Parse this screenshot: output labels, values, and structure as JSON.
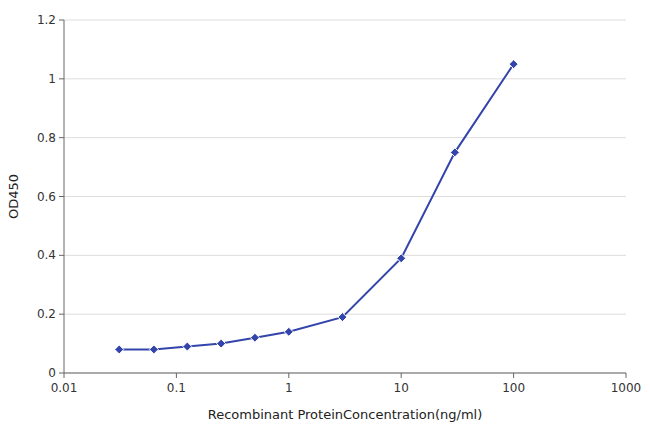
{
  "chart_data": {
    "type": "line",
    "x": [
      0.031,
      0.063,
      0.125,
      0.25,
      0.5,
      1.0,
      3.0,
      10.0,
      30.0,
      100.0
    ],
    "values": [
      0.08,
      0.08,
      0.09,
      0.1,
      0.12,
      0.14,
      0.19,
      0.39,
      0.75,
      1.05
    ],
    "color": "#3344aa",
    "marker": "diamond",
    "log": "x",
    "grid": "y",
    "xlabel": "Recombinant ProteinConcentration(ng/ml)",
    "ylabel": "OD450",
    "xlim": [
      0.01,
      1000
    ],
    "ylim": [
      0,
      1.2
    ],
    "xticks": [
      0.01,
      0.1,
      1,
      10,
      100,
      1000
    ],
    "yticks": [
      0,
      0.2,
      0.4,
      0.6,
      0.8,
      1.0,
      1.2
    ]
  }
}
